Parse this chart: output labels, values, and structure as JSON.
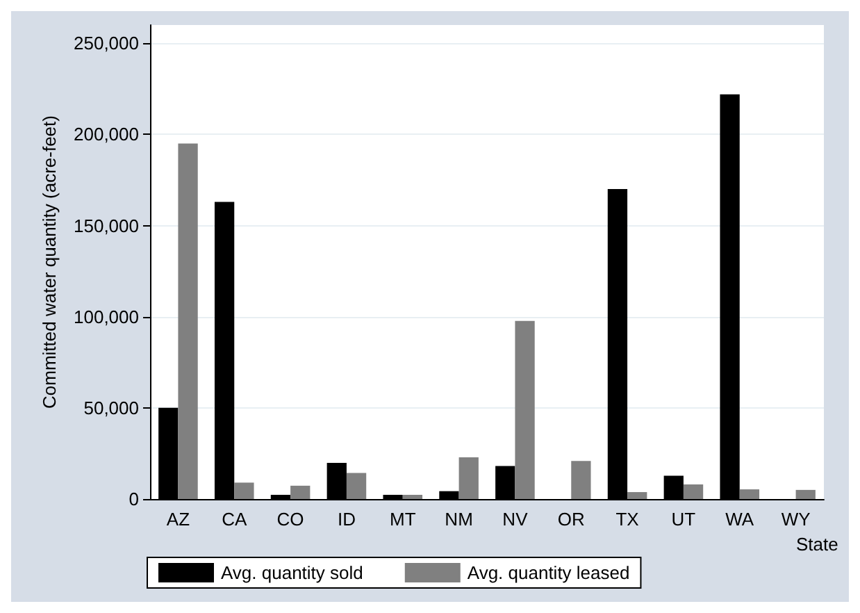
{
  "chart_data": {
    "type": "bar",
    "xlabel": "State",
    "ylabel": "Committed water quantity (acre-feet)",
    "categories": [
      "AZ",
      "CA",
      "CO",
      "ID",
      "MT",
      "NM",
      "NV",
      "OR",
      "TX",
      "UT",
      "WA",
      "WY"
    ],
    "series": [
      {
        "name": "Avg. quantity sold",
        "color": "#000000",
        "values": [
          50000,
          163000,
          2300,
          19800,
          2300,
          4300,
          18100,
          null,
          170000,
          12800,
          222000,
          null
        ]
      },
      {
        "name": "Avg. quantity leased",
        "color": "#808080",
        "values": [
          195000,
          9000,
          7300,
          14300,
          2300,
          22900,
          97700,
          20900,
          3800,
          8000,
          5300,
          5000
        ]
      }
    ],
    "ylim": [
      0,
      260000
    ],
    "yticks": [
      0,
      {
        "value": 50000,
        "label": "50,000"
      },
      {
        "value": 100000,
        "label": "100,000"
      },
      {
        "value": 150000,
        "label": "150,000"
      },
      {
        "value": 200000,
        "label": "200,000"
      },
      {
        "value": 250000,
        "label": "250,000"
      }
    ],
    "grid": "y",
    "legend": "bottom"
  }
}
